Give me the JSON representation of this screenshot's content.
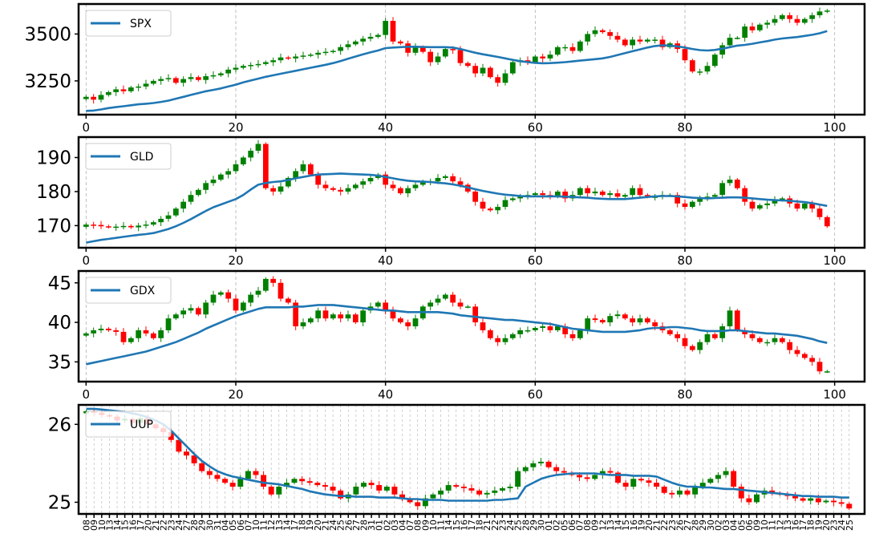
{
  "colors": {
    "up": "#008000",
    "down": "#ff0000",
    "line": "#1f77b4",
    "grid": "#b0b0b0",
    "frame": "#000000"
  },
  "chart_data": [
    {
      "type": "candlestick",
      "legend": "SPX",
      "legend_placement": "top-left",
      "grid": true,
      "xlim": [
        -1,
        104
      ],
      "x_ticks": [
        0,
        20,
        40,
        60,
        80,
        100
      ],
      "ylim": [
        3070,
        3660
      ],
      "y_ticks": [
        3250,
        3500
      ],
      "closes": [
        3165,
        3150,
        3175,
        3190,
        3205,
        3195,
        3215,
        3220,
        3235,
        3250,
        3260,
        3265,
        3240,
        3260,
        3270,
        3255,
        3275,
        3280,
        3290,
        3310,
        3320,
        3330,
        3335,
        3340,
        3350,
        3360,
        3375,
        3370,
        3380,
        3385,
        3390,
        3400,
        3405,
        3410,
        3430,
        3445,
        3460,
        3475,
        3485,
        3495,
        3570,
        3460,
        3450,
        3400,
        3430,
        3405,
        3350,
        3380,
        3420,
        3415,
        3345,
        3330,
        3290,
        3320,
        3270,
        3240,
        3290,
        3350,
        3360,
        3350,
        3380,
        3370,
        3390,
        3430,
        3430,
        3410,
        3460,
        3500,
        3520,
        3510,
        3490,
        3470,
        3440,
        3470,
        3460,
        3470,
        3470,
        3430,
        3450,
        3420,
        3360,
        3300,
        3300,
        3330,
        3390,
        3440,
        3480,
        3480,
        3540,
        3520,
        3550,
        3560,
        3580,
        3600,
        3580,
        3560,
        3580,
        3600,
        3620,
        3625
      ],
      "moving_average": [
        3090,
        3092,
        3098,
        3105,
        3110,
        3115,
        3120,
        3125,
        3128,
        3132,
        3138,
        3145,
        3155,
        3165,
        3175,
        3185,
        3195,
        3202,
        3210,
        3220,
        3230,
        3242,
        3252,
        3262,
        3272,
        3280,
        3288,
        3296,
        3304,
        3312,
        3320,
        3328,
        3336,
        3345,
        3356,
        3368,
        3380,
        3392,
        3402,
        3412,
        3425,
        3428,
        3430,
        3432,
        3432,
        3431,
        3430,
        3430,
        3430,
        3428,
        3420,
        3410,
        3400,
        3392,
        3385,
        3378,
        3370,
        3362,
        3355,
        3350,
        3346,
        3344,
        3345,
        3347,
        3350,
        3354,
        3358,
        3362,
        3366,
        3370,
        3378,
        3388,
        3398,
        3408,
        3418,
        3428,
        3436,
        3440,
        3438,
        3434,
        3428,
        3420,
        3414,
        3412,
        3415,
        3422,
        3430,
        3438,
        3442,
        3448,
        3455,
        3462,
        3470,
        3476,
        3480,
        3484,
        3490,
        3496,
        3504,
        3516
      ]
    },
    {
      "type": "candlestick",
      "legend": "GLD",
      "legend_placement": "top-left",
      "grid": true,
      "xlim": [
        -1,
        104
      ],
      "x_ticks": [
        0,
        20,
        40,
        60,
        80,
        100
      ],
      "ylim": [
        163.5,
        196
      ],
      "y_ticks": [
        170,
        180,
        190
      ],
      "closes": [
        170.3,
        170.2,
        169.8,
        169.6,
        169.7,
        169.9,
        169.5,
        170.0,
        170.3,
        171.0,
        172.0,
        173.0,
        175.0,
        177.0,
        179.0,
        180.5,
        182.5,
        183.5,
        185.0,
        186.0,
        188.0,
        190.0,
        192.0,
        194.0,
        181.0,
        180.0,
        181.5,
        184.0,
        186.0,
        188.0,
        185.0,
        182.0,
        181.0,
        180.5,
        180.0,
        181.0,
        182.0,
        183.0,
        184.0,
        185.0,
        182.0,
        181.0,
        179.5,
        181.0,
        182.0,
        183.0,
        183.0,
        184.0,
        184.5,
        183.0,
        182.0,
        180.0,
        177.0,
        175.0,
        174.5,
        175.5,
        177.5,
        178.0,
        178.5,
        179.0,
        179.5,
        179.0,
        178.5,
        180.0,
        178.0,
        179.0,
        181.0,
        179.5,
        180.0,
        179.0,
        179.5,
        178.5,
        179.0,
        181.0,
        179.0,
        178.5,
        178.5,
        179.0,
        179.0,
        176.5,
        175.5,
        177.0,
        178.0,
        178.5,
        179.0,
        182.5,
        183.5,
        181.0,
        177.0,
        175.0,
        176.0,
        176.5,
        177.5,
        178.0,
        176.5,
        175.0,
        176.5,
        175.0,
        172.5,
        169.8
      ],
      "moving_average": [
        165.0,
        165.4,
        165.8,
        166.1,
        166.4,
        166.7,
        167.0,
        167.3,
        167.5,
        167.8,
        168.4,
        169.0,
        169.8,
        170.8,
        171.9,
        173.1,
        174.3,
        175.4,
        176.2,
        177.0,
        177.8,
        179.0,
        180.6,
        182.0,
        182.5,
        182.8,
        183.0,
        183.4,
        183.9,
        184.3,
        184.7,
        185.0,
        185.1,
        185.2,
        185.3,
        185.2,
        185.1,
        185.0,
        184.9,
        184.7,
        184.3,
        183.9,
        183.5,
        183.2,
        183.0,
        182.9,
        182.8,
        182.6,
        182.4,
        182.1,
        181.7,
        181.2,
        180.7,
        180.2,
        179.8,
        179.4,
        179.1,
        178.9,
        178.7,
        178.6,
        178.6,
        178.6,
        178.6,
        178.6,
        178.5,
        178.4,
        178.3,
        178.2,
        178.0,
        177.9,
        177.8,
        177.8,
        177.8,
        178.0,
        178.2,
        178.4,
        178.6,
        178.7,
        178.7,
        178.6,
        178.4,
        178.2,
        178.1,
        178.0,
        178.1,
        178.2,
        178.3,
        178.3,
        178.2,
        178.0,
        177.8,
        177.6,
        177.5,
        177.4,
        177.3,
        177.1,
        176.9,
        176.6,
        176.2,
        175.8
      ]
    },
    {
      "type": "candlestick",
      "legend": "GDX",
      "legend_placement": "top-left",
      "grid": true,
      "xlim": [
        -1,
        104
      ],
      "x_ticks": [
        0,
        20,
        40,
        60,
        80,
        100
      ],
      "ylim": [
        32.5,
        46.5
      ],
      "y_ticks": [
        35,
        40,
        45
      ],
      "closes": [
        38.6,
        39.0,
        39.2,
        39.0,
        38.8,
        37.5,
        38.0,
        39.0,
        38.6,
        38.0,
        39.0,
        40.5,
        41.0,
        41.5,
        41.8,
        41.0,
        42.5,
        43.5,
        43.8,
        43.0,
        41.5,
        42.5,
        43.5,
        44.0,
        45.5,
        45.0,
        43.0,
        42.5,
        39.5,
        40.0,
        40.5,
        41.5,
        40.5,
        41.0,
        40.5,
        41.0,
        40.0,
        41.5,
        42.0,
        42.5,
        41.5,
        40.5,
        40.0,
        39.5,
        40.5,
        42.0,
        42.5,
        43.0,
        43.5,
        42.5,
        42.0,
        42.0,
        40.0,
        39.0,
        38.0,
        37.5,
        38.0,
        38.5,
        39.0,
        39.0,
        39.3,
        39.5,
        39.0,
        39.5,
        38.5,
        38.0,
        39.0,
        40.5,
        40.3,
        40.0,
        40.8,
        41.0,
        40.5,
        40.0,
        40.5,
        40.0,
        39.5,
        39.0,
        38.5,
        38.0,
        37.0,
        36.5,
        37.5,
        38.5,
        38.0,
        39.5,
        41.5,
        39.0,
        38.5,
        38.0,
        37.5,
        37.5,
        38.0,
        37.5,
        36.5,
        36.0,
        35.5,
        35.0,
        33.8,
        33.8
      ],
      "moving_average": [
        34.7,
        34.9,
        35.1,
        35.3,
        35.5,
        35.7,
        35.9,
        36.1,
        36.3,
        36.6,
        36.9,
        37.2,
        37.5,
        37.9,
        38.3,
        38.7,
        39.2,
        39.6,
        40.0,
        40.4,
        40.8,
        41.1,
        41.4,
        41.7,
        41.9,
        41.9,
        41.9,
        41.9,
        42.0,
        42.0,
        42.1,
        42.2,
        42.2,
        42.2,
        42.1,
        42.0,
        41.9,
        41.8,
        41.7,
        41.6,
        41.5,
        41.5,
        41.4,
        41.3,
        41.3,
        41.3,
        41.3,
        41.3,
        41.2,
        41.1,
        40.9,
        40.8,
        40.7,
        40.6,
        40.5,
        40.4,
        40.3,
        40.3,
        40.2,
        40.1,
        40.0,
        39.9,
        39.8,
        39.6,
        39.4,
        39.2,
        39.1,
        39.0,
        38.9,
        38.8,
        38.8,
        38.8,
        38.8,
        38.9,
        39.0,
        39.2,
        39.3,
        39.3,
        39.4,
        39.4,
        39.3,
        39.2,
        39.0,
        38.9,
        38.9,
        38.9,
        39.0,
        39.0,
        38.9,
        38.8,
        38.7,
        38.6,
        38.6,
        38.5,
        38.4,
        38.3,
        38.1,
        37.9,
        37.6,
        37.4
      ]
    },
    {
      "type": "candlestick",
      "legend": "UUP",
      "legend_placement": "top-left",
      "grid": true,
      "xlim": [
        -1,
        101
      ],
      "ylim": [
        24.85,
        26.25
      ],
      "y_ticks": [
        25,
        26
      ],
      "x_tick_labels": [
        "08",
        "09",
        "10",
        "13",
        "14",
        "15",
        "16",
        "17",
        "20",
        "21",
        "22",
        "23",
        "24",
        "27",
        "28",
        "29",
        "30",
        "31",
        "04",
        "05",
        "06",
        "07",
        "10",
        "11",
        "12",
        "13",
        "14",
        "17",
        "18",
        "19",
        "20",
        "21",
        "24",
        "25",
        "26",
        "27",
        "28",
        "31",
        "01",
        "02",
        "03",
        "04",
        "07",
        "08",
        "09",
        "10",
        "11",
        "14",
        "15",
        "16",
        "17",
        "18",
        "21",
        "22",
        "23",
        "24",
        "25",
        "28",
        "29",
        "30",
        "01",
        "02",
        "05",
        "06",
        "07",
        "08",
        "09",
        "12",
        "13",
        "14",
        "15",
        "16",
        "19",
        "20",
        "21",
        "22",
        "23",
        "26",
        "27",
        "28",
        "29",
        "30",
        "02",
        "03",
        "04",
        "05",
        "06",
        "09",
        "10",
        "11",
        "12",
        "13",
        "16",
        "17",
        "18",
        "19",
        "20",
        "23",
        "24",
        "25"
      ],
      "closes": [
        26.17,
        26.15,
        26.12,
        26.1,
        26.05,
        26.07,
        26.02,
        26.08,
        26.0,
        25.95,
        25.9,
        25.8,
        25.65,
        25.6,
        25.5,
        25.4,
        25.35,
        25.3,
        25.25,
        25.2,
        25.3,
        25.4,
        25.35,
        25.2,
        25.1,
        25.2,
        25.25,
        25.3,
        25.27,
        25.25,
        25.22,
        25.2,
        25.15,
        25.05,
        25.1,
        25.2,
        25.25,
        25.22,
        25.15,
        25.2,
        25.1,
        25.05,
        25.0,
        24.95,
        25.05,
        25.1,
        25.15,
        25.22,
        25.2,
        25.18,
        25.15,
        25.1,
        25.12,
        25.15,
        25.18,
        25.2,
        25.4,
        25.45,
        25.5,
        25.52,
        25.45,
        25.4,
        25.38,
        25.35,
        25.32,
        25.3,
        25.35,
        25.4,
        25.38,
        25.25,
        25.2,
        25.3,
        25.28,
        25.25,
        25.2,
        25.12,
        25.1,
        25.15,
        25.1,
        25.2,
        25.25,
        25.3,
        25.35,
        25.4,
        25.2,
        25.05,
        25.0,
        25.1,
        25.15,
        25.12,
        25.1,
        25.08,
        25.05,
        25.02,
        25.05,
        25.0,
        25.02,
        25.0,
        24.98,
        24.92
      ],
      "moving_average": [
        26.2,
        26.2,
        26.19,
        26.18,
        26.17,
        26.16,
        26.14,
        26.12,
        26.09,
        26.05,
        26.0,
        25.92,
        25.82,
        25.72,
        25.62,
        25.53,
        25.46,
        25.4,
        25.36,
        25.33,
        25.31,
        25.29,
        25.27,
        25.25,
        25.24,
        25.23,
        25.21,
        25.19,
        25.17,
        25.14,
        25.12,
        25.1,
        25.09,
        25.08,
        25.08,
        25.07,
        25.07,
        25.07,
        25.06,
        25.06,
        25.06,
        25.05,
        25.04,
        25.04,
        25.03,
        25.03,
        25.03,
        25.02,
        25.02,
        25.02,
        25.02,
        25.02,
        25.02,
        25.03,
        25.03,
        25.04,
        25.05,
        25.2,
        25.25,
        25.3,
        25.33,
        25.35,
        25.36,
        25.37,
        25.37,
        25.37,
        25.37,
        25.36,
        25.35,
        25.35,
        25.35,
        25.34,
        25.34,
        25.34,
        25.33,
        25.29,
        25.25,
        25.22,
        25.2,
        25.2,
        25.19,
        25.19,
        25.18,
        25.17,
        25.17,
        25.16,
        25.15,
        25.14,
        25.13,
        25.12,
        25.11,
        25.1,
        25.09,
        25.08,
        25.08,
        25.07,
        25.07,
        25.07,
        25.06,
        25.06
      ]
    }
  ]
}
